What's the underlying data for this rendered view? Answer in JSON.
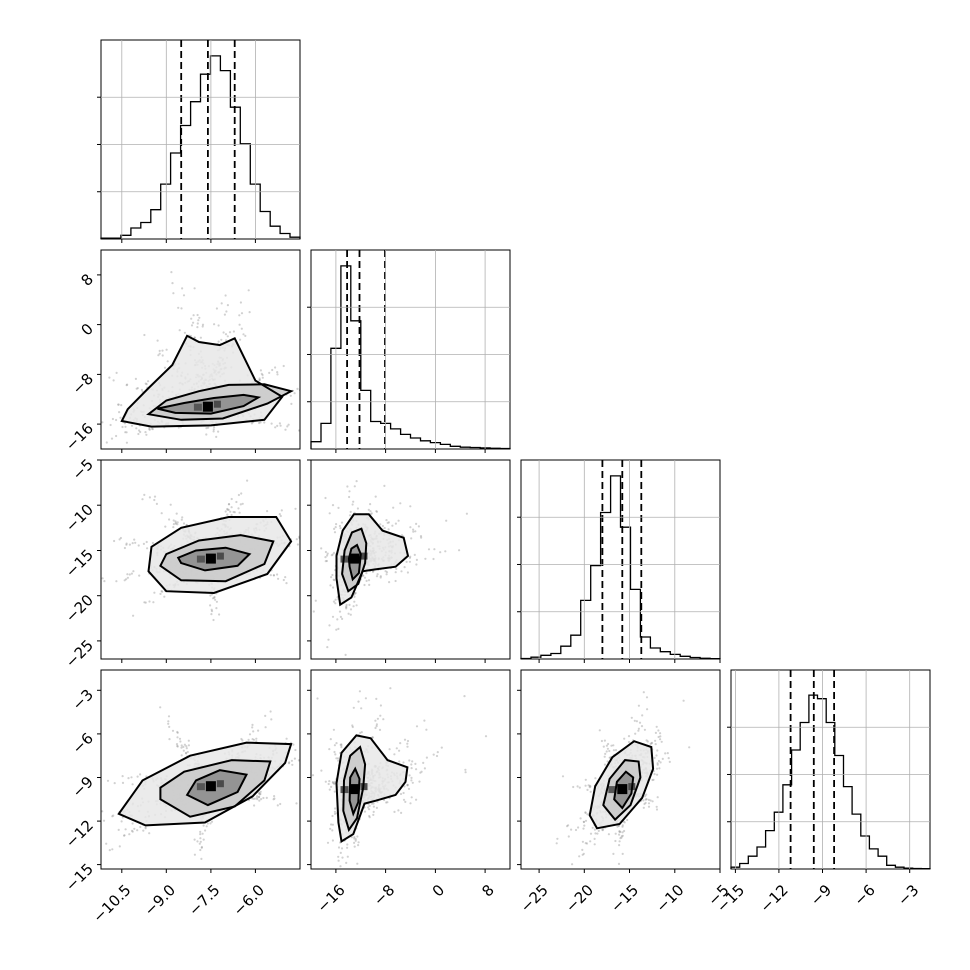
{
  "chart_data": {
    "type": "corner",
    "grid": true,
    "variables": [
      {
        "index": 0,
        "range": [
          -11.2,
          -4.5
        ],
        "ticks": [
          -10.5,
          -9.0,
          -7.5,
          -6.0
        ],
        "tick_labels": [
          "−10.5",
          "−9.0",
          "−7.5",
          "−6.0"
        ],
        "quantiles": [
          -8.5,
          -7.6,
          -6.7
        ],
        "hist_counts": [
          0.005,
          0.005,
          0.02,
          0.06,
          0.09,
          0.16,
          0.3,
          0.47,
          0.62,
          0.75,
          0.9,
          1.0,
          0.92,
          0.72,
          0.52,
          0.3,
          0.15,
          0.07,
          0.03,
          0.01
        ]
      },
      {
        "index": 1,
        "range": [
          -20,
          12
        ],
        "ticks": [
          -16,
          -8,
          0,
          8
        ],
        "tick_labels": [
          "−16",
          "−8",
          "0",
          "8"
        ],
        "quantiles": [
          -14.2,
          -12.2,
          -8.1
        ],
        "hist_counts": [
          0.04,
          0.14,
          0.55,
          1.0,
          0.7,
          0.32,
          0.15,
          0.14,
          0.11,
          0.08,
          0.06,
          0.045,
          0.035,
          0.025,
          0.015,
          0.01,
          0.008,
          0.006,
          0.004,
          0.003
        ]
      },
      {
        "index": 2,
        "range": [
          -27,
          -5
        ],
        "ticks": [
          -25,
          -20,
          -15,
          -10,
          -5
        ],
        "tick_labels": [
          "−25",
          "−20",
          "−15",
          "−10",
          "−5"
        ],
        "quantiles": [
          -18,
          -15.8,
          -13.7
        ],
        "hist_counts": [
          0.003,
          0.01,
          0.02,
          0.03,
          0.07,
          0.13,
          0.32,
          0.51,
          0.8,
          1.0,
          0.72,
          0.38,
          0.12,
          0.06,
          0.04,
          0.025,
          0.015,
          0.008,
          0.004,
          0.002
        ]
      },
      {
        "index": 3,
        "range": [
          -15.3,
          -1.6
        ],
        "ticks": [
          -15,
          -12,
          -9,
          -6,
          -3
        ],
        "tick_labels": [
          "−15",
          "−12",
          "−9",
          "−6",
          "−3"
        ],
        "quantiles": [
          -11.2,
          -9.6,
          -8.2
        ],
        "hist_counts": [
          0.01,
          0.03,
          0.07,
          0.12,
          0.21,
          0.31,
          0.46,
          0.65,
          0.8,
          0.95,
          0.93,
          0.8,
          0.62,
          0.45,
          0.3,
          0.18,
          0.11,
          0.07,
          0.02,
          0.01,
          0.005,
          0.003,
          0.002
        ]
      }
    ],
    "pairs": [
      {
        "row": 1,
        "col": 0,
        "center": [
          -7.6,
          -13.2
        ],
        "contours": [
          [
            [
              -9.3,
              -13.5
            ],
            [
              -8.7,
              -14.2
            ],
            [
              -7.5,
              -14.3
            ],
            [
              -6.4,
              -13.1
            ],
            [
              -5.9,
              -11.7
            ],
            [
              -6.4,
              -11.3
            ],
            [
              -7.4,
              -11.8
            ],
            [
              -8.4,
              -12.6
            ]
          ],
          [
            [
              -9.6,
              -14.4
            ],
            [
              -8.5,
              -15.3
            ],
            [
              -7.1,
              -15.1
            ],
            [
              -5.6,
              -12.7
            ],
            [
              -4.8,
              -10.7
            ],
            [
              -5.7,
              -9.6
            ],
            [
              -6.9,
              -9.7
            ],
            [
              -7.9,
              -10.7
            ],
            [
              -9.0,
              -12.2
            ]
          ],
          [
            [
              -10.5,
              -15.5
            ],
            [
              -9.5,
              -16.4
            ],
            [
              -7.5,
              -16.2
            ],
            [
              -5.7,
              -15.3
            ],
            [
              -5.1,
              -11.6
            ],
            [
              -6.0,
              -9.0
            ],
            [
              -6.7,
              -2.2
            ],
            [
              -7.2,
              -3.3
            ],
            [
              -7.9,
              -2.8
            ],
            [
              -8.3,
              -1.8
            ],
            [
              -8.8,
              -6.5
            ],
            [
              -9.6,
              -10.2
            ],
            [
              -10.3,
              -13.6
            ]
          ]
        ]
      },
      {
        "row": 2,
        "col": 0,
        "center": [
          -7.5,
          -15.9
        ],
        "contours": [
          [
            [
              -8.5,
              -16.4
            ],
            [
              -7.7,
              -17.2
            ],
            [
              -6.6,
              -16.7
            ],
            [
              -6.2,
              -15.4
            ],
            [
              -7.0,
              -14.7
            ],
            [
              -8.0,
              -15.0
            ],
            [
              -8.6,
              -15.8
            ]
          ],
          [
            [
              -9.2,
              -16.7
            ],
            [
              -8.5,
              -18.3
            ],
            [
              -7.0,
              -18.4
            ],
            [
              -5.7,
              -16.5
            ],
            [
              -5.4,
              -14.0
            ],
            [
              -6.5,
              -13.3
            ],
            [
              -7.9,
              -13.9
            ],
            [
              -9.0,
              -15.4
            ]
          ],
          [
            [
              -9.6,
              -17.3
            ],
            [
              -9.0,
              -19.5
            ],
            [
              -7.4,
              -19.7
            ],
            [
              -5.6,
              -17.6
            ],
            [
              -4.8,
              -14.0
            ],
            [
              -5.3,
              -11.3
            ],
            [
              -6.9,
              -11.3
            ],
            [
              -8.5,
              -12.5
            ],
            [
              -9.5,
              -14.6
            ]
          ]
        ]
      },
      {
        "row": 2,
        "col": 1,
        "center": [
          -13,
          -15.9
        ],
        "contours": [
          [
            [
              -13.8,
              -16.8
            ],
            [
              -13.3,
              -18.2
            ],
            [
              -12.3,
              -17.5
            ],
            [
              -12.0,
              -15.4
            ],
            [
              -12.6,
              -14.4
            ],
            [
              -13.5,
              -14.8
            ],
            [
              -13.9,
              -15.9
            ]
          ],
          [
            [
              -15.0,
              -17.6
            ],
            [
              -14.0,
              -19.5
            ],
            [
              -12.4,
              -18.7
            ],
            [
              -11.3,
              -16.4
            ],
            [
              -11.1,
              -14.2
            ],
            [
              -11.9,
              -12.6
            ],
            [
              -13.4,
              -13.0
            ],
            [
              -14.6,
              -15.0
            ]
          ],
          [
            [
              -15.9,
              -18.1
            ],
            [
              -15.3,
              -21.0
            ],
            [
              -13.5,
              -20.2
            ],
            [
              -11.7,
              -17.3
            ],
            [
              -9.8,
              -17.1
            ],
            [
              -6.4,
              -16.8
            ],
            [
              -4.4,
              -15.6
            ],
            [
              -5.1,
              -13.6
            ],
            [
              -8.5,
              -12.8
            ],
            [
              -10.7,
              -11.0
            ],
            [
              -13.1,
              -11.0
            ],
            [
              -14.9,
              -12.8
            ],
            [
              -15.9,
              -15.6
            ]
          ]
        ]
      },
      {
        "row": 3,
        "col": 0,
        "center": [
          -7.5,
          -9.6
        ],
        "contours": [
          [
            [
              -8.3,
              -10.2
            ],
            [
              -7.6,
              -10.9
            ],
            [
              -6.6,
              -10.0
            ],
            [
              -6.3,
              -8.8
            ],
            [
              -7.2,
              -8.5
            ],
            [
              -8.0,
              -9.2
            ]
          ],
          [
            [
              -9.2,
              -10.5
            ],
            [
              -8.2,
              -11.7
            ],
            [
              -6.7,
              -11.0
            ],
            [
              -5.7,
              -9.2
            ],
            [
              -5.5,
              -7.9
            ],
            [
              -6.8,
              -7.8
            ],
            [
              -8.4,
              -8.6
            ],
            [
              -9.2,
              -9.7
            ]
          ],
          [
            [
              -10.6,
              -11.5
            ],
            [
              -9.7,
              -12.3
            ],
            [
              -7.7,
              -12.1
            ],
            [
              -6.1,
              -10.3
            ],
            [
              -5.0,
              -8.0
            ],
            [
              -4.8,
              -6.7
            ],
            [
              -6.3,
              -6.6
            ],
            [
              -8.2,
              -7.5
            ],
            [
              -9.8,
              -9.2
            ]
          ]
        ]
      },
      {
        "row": 3,
        "col": 1,
        "center": [
          -13,
          -9.8
        ],
        "contours": [
          [
            [
              -13.8,
              -10.6
            ],
            [
              -13.2,
              -11.5
            ],
            [
              -12.4,
              -10.7
            ],
            [
              -12.2,
              -9.1
            ],
            [
              -12.9,
              -8.4
            ],
            [
              -13.7,
              -9.0
            ]
          ],
          [
            [
              -14.8,
              -11.3
            ],
            [
              -13.9,
              -12.6
            ],
            [
              -12.6,
              -11.8
            ],
            [
              -11.6,
              -9.7
            ],
            [
              -11.3,
              -8.1
            ],
            [
              -12.1,
              -6.9
            ],
            [
              -13.7,
              -7.5
            ],
            [
              -14.7,
              -9.2
            ]
          ],
          [
            [
              -15.6,
              -12.1
            ],
            [
              -15.1,
              -13.4
            ],
            [
              -13.2,
              -12.9
            ],
            [
              -11.4,
              -10.8
            ],
            [
              -9.6,
              -10.6
            ],
            [
              -6.4,
              -10.2
            ],
            [
              -4.8,
              -9.3
            ],
            [
              -4.5,
              -8.3
            ],
            [
              -7.7,
              -7.8
            ],
            [
              -10.4,
              -6.3
            ],
            [
              -12.7,
              -6.1
            ],
            [
              -15.1,
              -7.3
            ],
            [
              -15.9,
              -9.4
            ]
          ]
        ]
      },
      {
        "row": 3,
        "col": 2,
        "center": [
          -15.8,
          -9.8
        ],
        "contours": [
          [
            [
              -16.7,
              -10.5
            ],
            [
              -15.8,
              -11.1
            ],
            [
              -14.8,
              -10.1
            ],
            [
              -14.6,
              -9.0
            ],
            [
              -15.4,
              -8.6
            ],
            [
              -16.4,
              -9.3
            ]
          ],
          [
            [
              -17.9,
              -10.9
            ],
            [
              -16.6,
              -11.9
            ],
            [
              -14.9,
              -10.9
            ],
            [
              -13.8,
              -9.0
            ],
            [
              -14.0,
              -7.9
            ],
            [
              -15.5,
              -7.8
            ],
            [
              -17.2,
              -9.1
            ]
          ],
          [
            [
              -19.4,
              -11.6
            ],
            [
              -18.6,
              -12.5
            ],
            [
              -16.1,
              -12.2
            ],
            [
              -13.6,
              -10.4
            ],
            [
              -12.4,
              -8.4
            ],
            [
              -12.6,
              -6.9
            ],
            [
              -14.5,
              -6.5
            ],
            [
              -16.9,
              -7.6
            ],
            [
              -18.8,
              -9.6
            ]
          ]
        ]
      }
    ]
  }
}
